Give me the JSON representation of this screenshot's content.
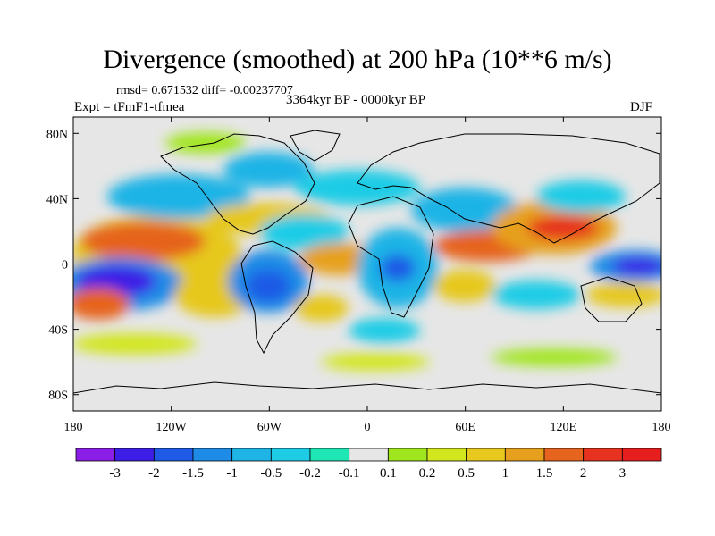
{
  "chart_data": {
    "type": "heatmap",
    "title": "Divergence (smoothed) at 200 hPa (10**6 m/s)",
    "stats_text": "rmsd= 0.671532 diff= -0.00237707",
    "period_text": "3364kyr BP - 0000kyr BP",
    "experiment_text": "Expt = tFmF1-tfmea",
    "season": "DJF",
    "x_ticks": [
      "180",
      "120W",
      "60W",
      "0",
      "60E",
      "120E",
      "180"
    ],
    "x_range": [
      -180,
      180
    ],
    "y_ticks": [
      "80N",
      "40N",
      "0",
      "40S",
      "80S"
    ],
    "y_range": [
      -90,
      90
    ],
    "colorbar": {
      "levels": [
        "-3",
        "-2",
        "-1.5",
        "-1",
        "-0.5",
        "-0.2",
        "-0.1",
        "0.1",
        "0.2",
        "0.5",
        "1",
        "1.5",
        "2",
        "3"
      ],
      "colors": [
        "#8a1ee6",
        "#3c1ee6",
        "#1e5ae6",
        "#1e8ce6",
        "#1eb4e6",
        "#1ecce6",
        "#1ee6b4",
        "#e6e6e6",
        "#a0e61e",
        "#d2e61e",
        "#e6c81e",
        "#e6a01e",
        "#e6641e",
        "#e6321e",
        "#e61e1e"
      ]
    },
    "features": [
      {
        "name": "central-pacific-convergence",
        "sign": "negative",
        "lon": -145,
        "lat": -5,
        "value": -3
      },
      {
        "name": "west-pacific-convergence",
        "sign": "negative",
        "lon": 160,
        "lat": 0,
        "value": -3
      },
      {
        "name": "south-america-convergence",
        "sign": "negative",
        "lon": -55,
        "lat": -15,
        "value": -1.5
      },
      {
        "name": "africa-convergence",
        "sign": "negative",
        "lon": 20,
        "lat": -5,
        "value": -1.5
      },
      {
        "name": "pacific-divergence",
        "sign": "positive",
        "lon": -150,
        "lat": 10,
        "value": 1.5
      },
      {
        "name": "south-pacific-divergence",
        "sign": "positive",
        "lon": -160,
        "lat": -25,
        "value": 2
      },
      {
        "name": "indian-ocean-divergence",
        "sign": "positive",
        "lon": 70,
        "lat": 10,
        "value": 1.5
      },
      {
        "name": "maritime-continent-divergence",
        "sign": "positive",
        "lon": 120,
        "lat": 15,
        "value": 2
      },
      {
        "name": "atlantic-divergence",
        "sign": "positive",
        "lon": -25,
        "lat": 5,
        "value": 1.5
      }
    ]
  }
}
